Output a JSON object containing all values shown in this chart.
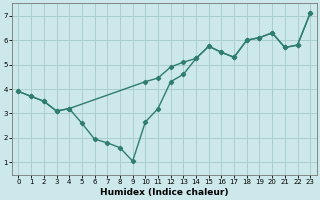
{
  "xlabel": "Humidex (Indice chaleur)",
  "bg_color": "#cce8ea",
  "line_color": "#2e7d6e",
  "grid_color": "#aacfcf",
  "line1_x": [
    0,
    1,
    2,
    3,
    4,
    10,
    11,
    12,
    13,
    14,
    15,
    16,
    17,
    18,
    19,
    20,
    21,
    22,
    23
  ],
  "line1_y": [
    3.9,
    3.7,
    3.5,
    3.1,
    3.2,
    4.3,
    4.45,
    4.9,
    5.1,
    5.25,
    5.75,
    5.5,
    5.3,
    6.0,
    6.1,
    6.3,
    5.7,
    5.8,
    7.1
  ],
  "line2_x": [
    0,
    1,
    2,
    3,
    4,
    5,
    6,
    7,
    8,
    9,
    10,
    11,
    12,
    13,
    14,
    15,
    16,
    17,
    18,
    19,
    20,
    21,
    22,
    23
  ],
  "line2_y": [
    3.9,
    3.7,
    3.5,
    3.1,
    3.2,
    2.6,
    1.95,
    1.8,
    1.6,
    1.05,
    2.65,
    3.2,
    4.3,
    4.6,
    5.25,
    5.75,
    5.5,
    5.3,
    6.0,
    6.1,
    6.3,
    5.7,
    5.8,
    7.1
  ],
  "xlim": [
    -0.5,
    23.5
  ],
  "ylim": [
    0.5,
    7.5
  ],
  "yticks": [
    1,
    2,
    3,
    4,
    5,
    6,
    7
  ],
  "xticks": [
    0,
    1,
    2,
    3,
    4,
    5,
    6,
    7,
    8,
    9,
    10,
    11,
    12,
    13,
    14,
    15,
    16,
    17,
    18,
    19,
    20,
    21,
    22,
    23
  ],
  "marker": "D",
  "markersize": 2.2,
  "linewidth": 1.0,
  "tick_labelsize": 5.0,
  "xlabel_fontsize": 6.5
}
